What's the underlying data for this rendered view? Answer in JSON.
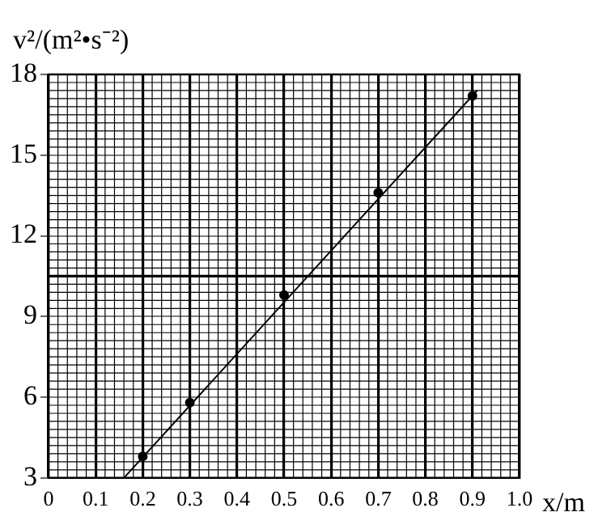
{
  "chart_data": {
    "type": "scatter",
    "xlabel": "x/m",
    "ylabel": "v²/(m²•s⁻²)",
    "xlim": [
      0,
      1
    ],
    "ylim": [
      3,
      18
    ],
    "xticks": [
      0,
      0.1,
      0.2,
      0.3,
      0.4,
      0.5,
      0.6,
      0.7,
      0.8,
      0.9,
      {
        "value": 1,
        "label": "1.0"
      }
    ],
    "yticks": [
      3,
      6,
      9,
      12,
      15,
      18
    ],
    "grid": true,
    "ref_lines": [
      {
        "axis": "y",
        "value": 10.5,
        "color": "#000000"
      }
    ],
    "series": [
      {
        "marker": "circle",
        "color": "#000000",
        "x": [
          0.2,
          0.3,
          0.5,
          0.7,
          0.9
        ],
        "values": [
          3.8,
          5.8,
          9.8,
          13.6,
          17.2
        ]
      },
      {
        "type": "line",
        "marker": "none",
        "color": "#000000",
        "x": [
          0.16,
          0.91
        ],
        "values": [
          3.0,
          17.4
        ]
      }
    ]
  }
}
